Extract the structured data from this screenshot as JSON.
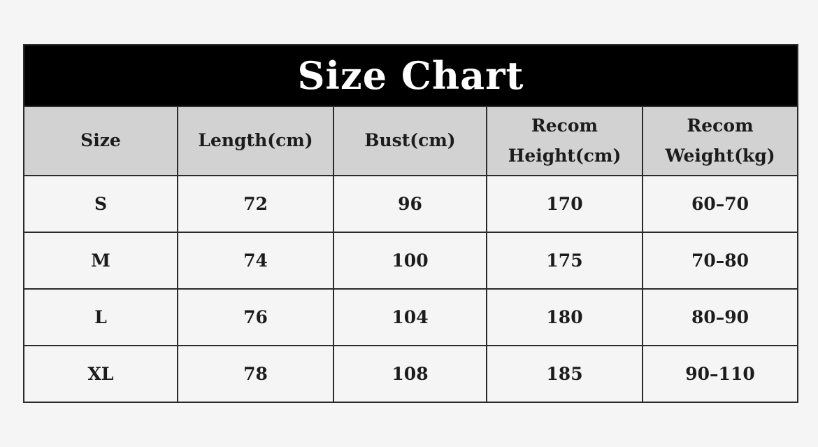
{
  "banner": {
    "title": "Size Chart"
  },
  "table": {
    "headers": {
      "size": "Size",
      "length": "Length(cm)",
      "bust": "Bust(cm)",
      "height_line1": "Recom",
      "height_line2": "Height(cm)",
      "weight_line1": "Recom",
      "weight_line2": "Weight(kg)"
    },
    "rows": [
      {
        "size": "S",
        "length": "72",
        "bust": "96",
        "height": "170",
        "weight": "60–70"
      },
      {
        "size": "M",
        "length": "74",
        "bust": "100",
        "height": "175",
        "weight": "70–80"
      },
      {
        "size": "L",
        "length": "76",
        "bust": "104",
        "height": "180",
        "weight": "80–90"
      },
      {
        "size": "XL",
        "length": "78",
        "bust": "108",
        "height": "185",
        "weight": "90–110"
      }
    ]
  },
  "colors": {
    "page_bg": "#f5f5f6",
    "banner_bg": "#000000",
    "banner_text": "#ffffff",
    "header_bg": "#d2d2d2",
    "cell_bg": "#f5f5f5",
    "border": "#2b2b2b",
    "text": "#1c1c1c"
  }
}
